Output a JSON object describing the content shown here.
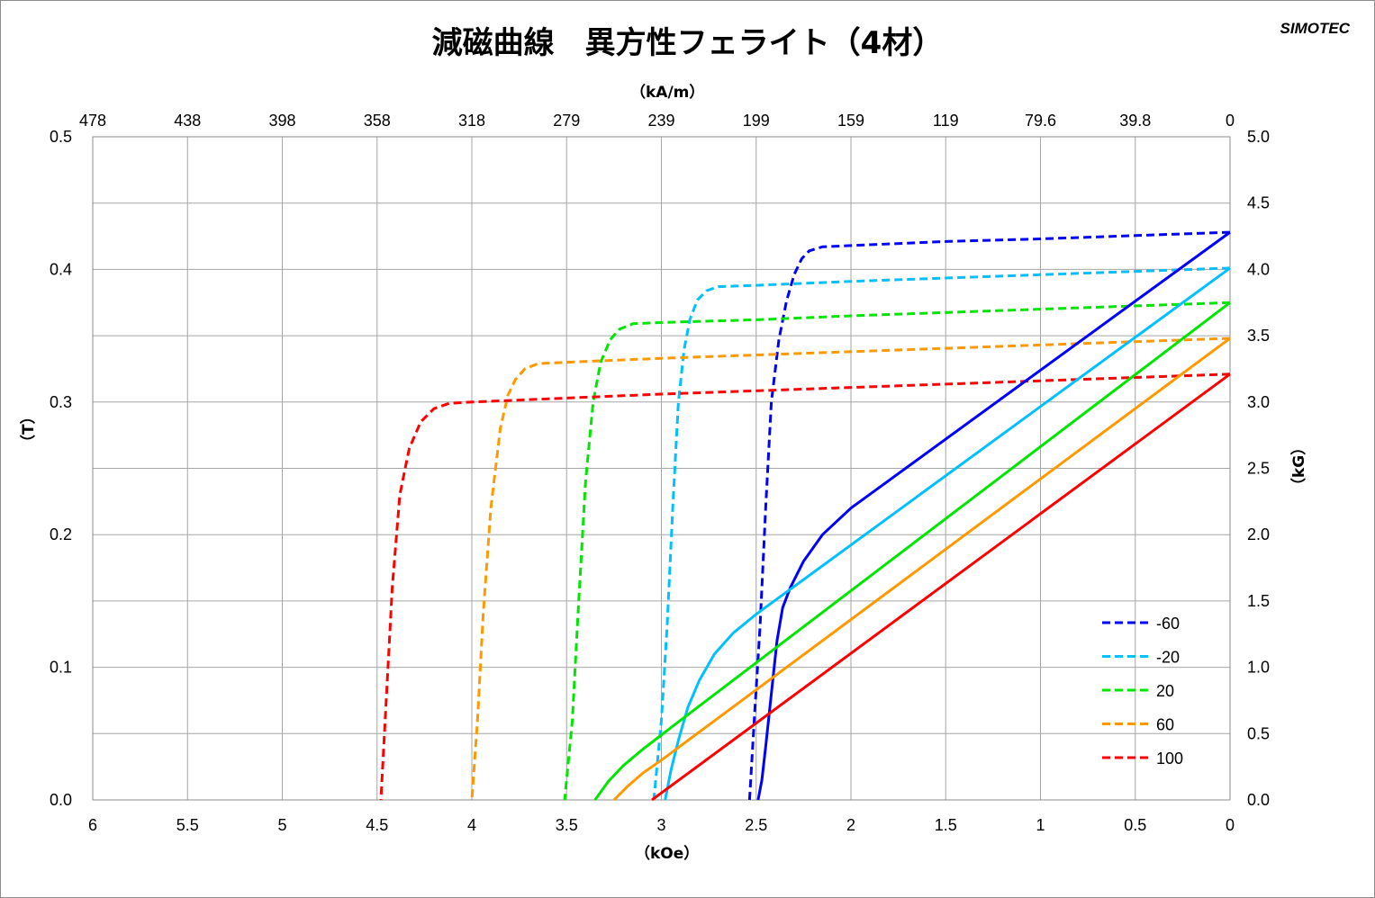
{
  "title": "減磁曲線　異方性フェライト（4材）",
  "brand": "SIMOTEC",
  "chart_data": {
    "type": "line",
    "title": "減磁曲線　異方性フェライト（4材）",
    "axes": {
      "x_bottom": {
        "label": "（kOe）",
        "range": [
          6,
          0
        ],
        "ticks": [
          "6",
          "5.5",
          "5",
          "4.5",
          "4",
          "3.5",
          "3",
          "2.5",
          "2",
          "1.5",
          "1",
          "0.5",
          "0"
        ]
      },
      "x_top": {
        "label": "（kA/m）",
        "ticks": [
          "478",
          "438",
          "398",
          "358",
          "318",
          "279",
          "239",
          "199",
          "159",
          "119",
          "79.6",
          "39.8",
          "0"
        ]
      },
      "y_left": {
        "label": "（T）",
        "range": [
          0,
          0.5
        ],
        "ticks": [
          "0.0",
          "0.1",
          "0.2",
          "0.3",
          "0.4",
          "0.5"
        ]
      },
      "y_right": {
        "label": "（kG）",
        "range": [
          0,
          5
        ],
        "ticks": [
          "0.0",
          "0.5",
          "1.0",
          "1.5",
          "2.0",
          "2.5",
          "3.0",
          "3.5",
          "4.0",
          "4.5",
          "5.0"
        ]
      }
    },
    "grid": true,
    "legend_position": "bottom-right",
    "series": [
      {
        "name": "-60",
        "color": "#0000ff",
        "dash": true,
        "points": [
          [
            0,
            0.428
          ],
          [
            1.0,
            0.423
          ],
          [
            1.5,
            0.421
          ],
          [
            2.0,
            0.418
          ],
          [
            2.15,
            0.417
          ],
          [
            2.22,
            0.414
          ],
          [
            2.26,
            0.408
          ],
          [
            2.3,
            0.396
          ],
          [
            2.34,
            0.376
          ],
          [
            2.38,
            0.347
          ],
          [
            2.42,
            0.3
          ],
          [
            2.45,
            0.22
          ],
          [
            2.48,
            0.13
          ],
          [
            2.51,
            0.06
          ],
          [
            2.535,
            0.0
          ]
        ]
      },
      {
        "name": "-20",
        "color": "#00c0ff",
        "dash": true,
        "points": [
          [
            0,
            0.401
          ],
          [
            1.0,
            0.396
          ],
          [
            2.0,
            0.391
          ],
          [
            2.5,
            0.388
          ],
          [
            2.7,
            0.387
          ],
          [
            2.76,
            0.384
          ],
          [
            2.81,
            0.377
          ],
          [
            2.85,
            0.362
          ],
          [
            2.88,
            0.34
          ],
          [
            2.91,
            0.3
          ],
          [
            2.94,
            0.22
          ],
          [
            2.97,
            0.13
          ],
          [
            3.0,
            0.06
          ],
          [
            3.04,
            0.0
          ]
        ]
      },
      {
        "name": "20",
        "color": "#00e600",
        "dash": true,
        "points": [
          [
            0,
            0.375
          ],
          [
            1.0,
            0.37
          ],
          [
            2.0,
            0.365
          ],
          [
            2.5,
            0.362
          ],
          [
            3.0,
            0.36
          ],
          [
            3.15,
            0.359
          ],
          [
            3.22,
            0.355
          ],
          [
            3.27,
            0.347
          ],
          [
            3.32,
            0.33
          ],
          [
            3.36,
            0.3
          ],
          [
            3.4,
            0.24
          ],
          [
            3.44,
            0.14
          ],
          [
            3.47,
            0.06
          ],
          [
            3.51,
            0.0
          ]
        ]
      },
      {
        "name": "60",
        "color": "#ff9900",
        "dash": true,
        "points": [
          [
            0,
            0.348
          ],
          [
            1.0,
            0.343
          ],
          [
            2.0,
            0.338
          ],
          [
            3.0,
            0.333
          ],
          [
            3.5,
            0.33
          ],
          [
            3.65,
            0.329
          ],
          [
            3.72,
            0.325
          ],
          [
            3.77,
            0.317
          ],
          [
            3.81,
            0.305
          ],
          [
            3.85,
            0.28
          ],
          [
            3.9,
            0.22
          ],
          [
            3.94,
            0.14
          ],
          [
            3.97,
            0.06
          ],
          [
            4.0,
            0.0
          ]
        ]
      },
      {
        "name": "100",
        "color": "#ff0000",
        "dash": true,
        "points": [
          [
            0,
            0.321
          ],
          [
            1.0,
            0.316
          ],
          [
            2.0,
            0.311
          ],
          [
            3.0,
            0.306
          ],
          [
            3.5,
            0.303
          ],
          [
            4.0,
            0.3
          ],
          [
            4.12,
            0.299
          ],
          [
            4.2,
            0.295
          ],
          [
            4.27,
            0.285
          ],
          [
            4.33,
            0.265
          ],
          [
            4.38,
            0.23
          ],
          [
            4.42,
            0.16
          ],
          [
            4.45,
            0.08
          ],
          [
            4.48,
            0.0
          ]
        ]
      },
      {
        "name": "-60",
        "color": "#0000ff",
        "dash": false,
        "points": [
          [
            0,
            0.428
          ],
          [
            2.0,
            0.22
          ],
          [
            2.15,
            0.2
          ],
          [
            2.25,
            0.18
          ],
          [
            2.32,
            0.16
          ],
          [
            2.36,
            0.145
          ],
          [
            2.39,
            0.12
          ],
          [
            2.42,
            0.08
          ],
          [
            2.45,
            0.04
          ],
          [
            2.47,
            0.015
          ],
          [
            2.49,
            0.0
          ]
        ]
      },
      {
        "name": "-20",
        "color": "#00c0ff",
        "dash": false,
        "points": [
          [
            0,
            0.401
          ],
          [
            2.5,
            0.14
          ],
          [
            2.62,
            0.126
          ],
          [
            2.72,
            0.11
          ],
          [
            2.8,
            0.09
          ],
          [
            2.86,
            0.07
          ],
          [
            2.91,
            0.045
          ],
          [
            2.95,
            0.022
          ],
          [
            2.98,
            0.0
          ]
        ]
      },
      {
        "name": "20",
        "color": "#00e600",
        "dash": false,
        "points": [
          [
            0,
            0.375
          ],
          [
            2.9,
            0.06
          ],
          [
            3.0,
            0.049
          ],
          [
            3.1,
            0.038
          ],
          [
            3.2,
            0.026
          ],
          [
            3.28,
            0.014
          ],
          [
            3.35,
            0.0
          ]
        ]
      },
      {
        "name": "60",
        "color": "#ff9900",
        "dash": false,
        "points": [
          [
            0,
            0.348
          ],
          [
            3.0,
            0.03
          ],
          [
            3.1,
            0.02
          ],
          [
            3.18,
            0.01
          ],
          [
            3.25,
            0.0
          ]
        ]
      },
      {
        "name": "100",
        "color": "#ff0000",
        "dash": false,
        "points": [
          [
            0,
            0.321
          ],
          [
            3.05,
            0.0
          ]
        ]
      }
    ]
  }
}
